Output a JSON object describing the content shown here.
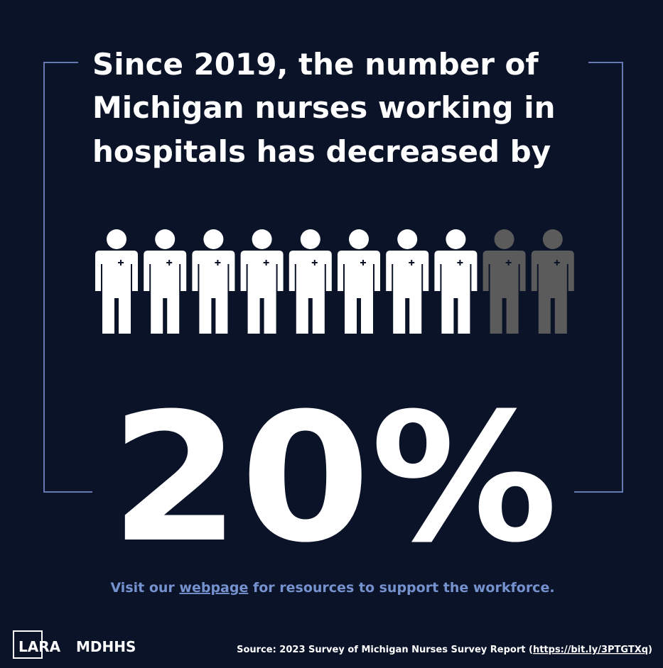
{
  "headline": [
    "Since 2019, the number of",
    "Michigan nurses working in",
    "hospitals has decreased by"
  ],
  "pictogram": {
    "total": 10,
    "lost": 2,
    "color": "#ffffff",
    "lost_color": "#5b5b5b"
  },
  "statistic": "20%",
  "cta": {
    "before": "Visit our ",
    "link": "webpage",
    "after": " for resources to support the workforce."
  },
  "logos": [
    "LARA",
    "MDHHS"
  ],
  "source": {
    "before": "Source: 2023 Survey of Michigan Nurses Survey Report (",
    "link": "https://bit.ly/3PTGTXq",
    "after": ")"
  }
}
